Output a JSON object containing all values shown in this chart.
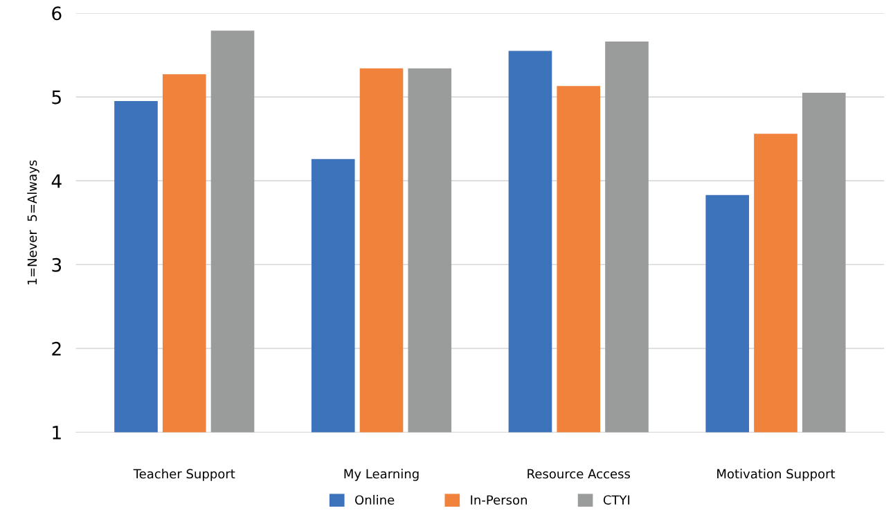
{
  "chart_data": {
    "type": "bar",
    "ylabel": "1=Never  5=Always",
    "categories": [
      "Teacher Support",
      "My Learning",
      "Resource Access",
      "Motivation Support"
    ],
    "series": [
      {
        "name": "Online",
        "color": "#3d73ba",
        "values": [
          4.95,
          4.26,
          5.55,
          3.83
        ]
      },
      {
        "name": "In-Person",
        "color": "#f0823c",
        "values": [
          5.27,
          5.34,
          5.13,
          4.56
        ]
      },
      {
        "name": "CTYI",
        "color": "#9a9c9c",
        "values": [
          5.79,
          5.34,
          5.66,
          5.05
        ]
      }
    ],
    "ylim": [
      1,
      6
    ],
    "yticks": [
      1,
      2,
      3,
      4,
      5,
      6
    ],
    "grid": "y",
    "legend": "bottom"
  }
}
